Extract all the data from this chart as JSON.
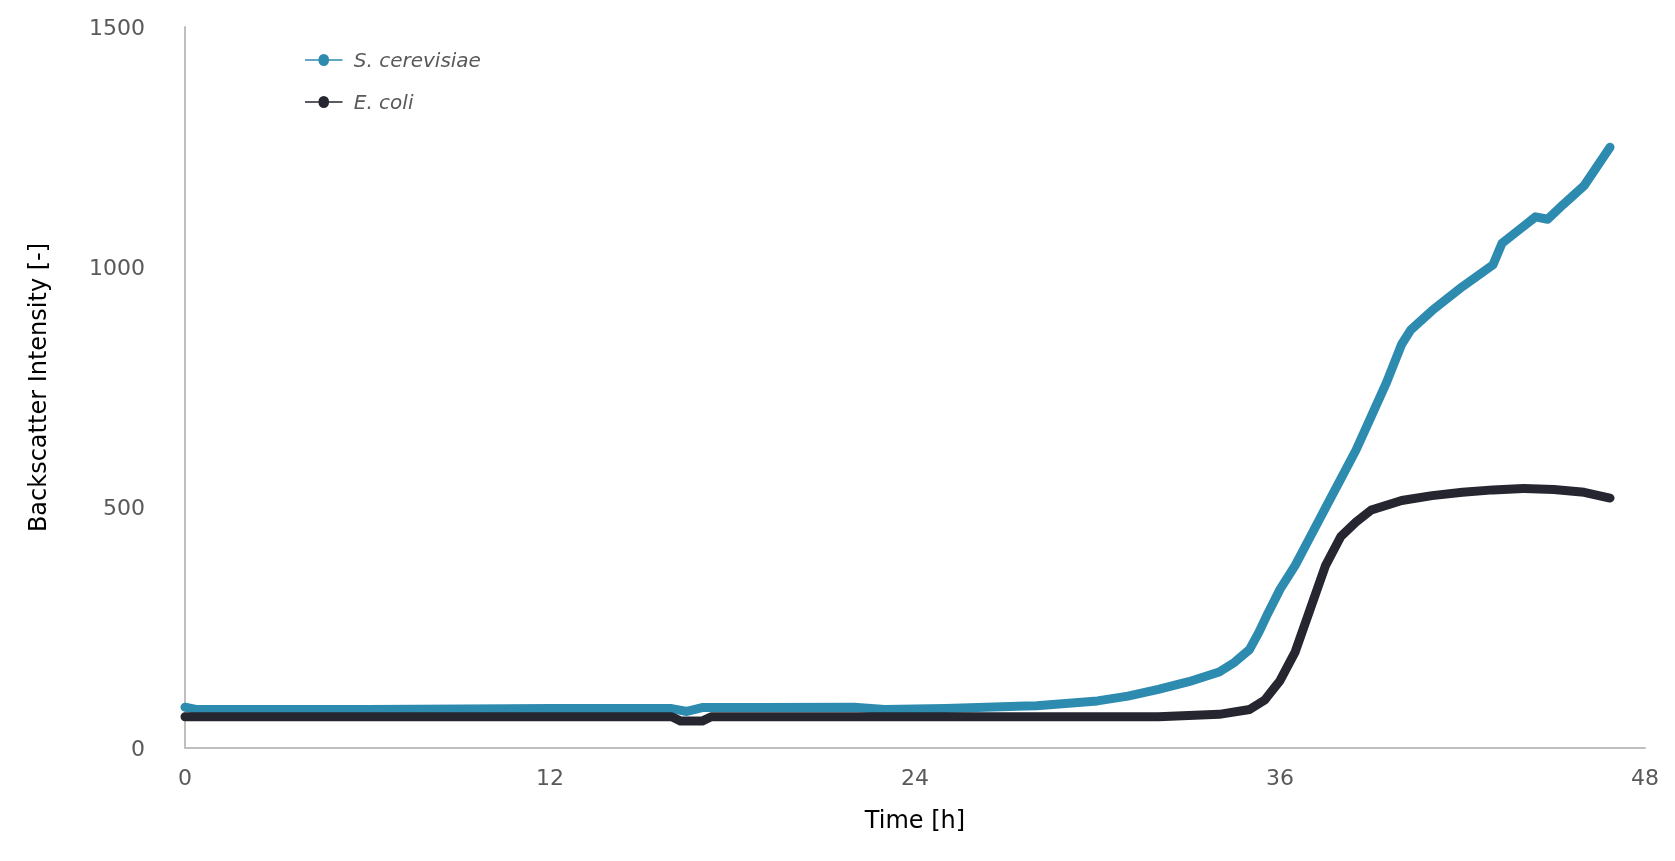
{
  "chart_data": {
    "type": "line",
    "xlabel": "Time [h]",
    "ylabel": "Backscatter Intensity [-]",
    "xlim": [
      0,
      48
    ],
    "xticks": [
      0,
      12,
      24,
      36,
      48
    ],
    "ylim": [
      0,
      1500
    ],
    "yticks": [
      0,
      500,
      1000,
      1500
    ],
    "grid": false,
    "legend": "top left",
    "marker": "none",
    "line_style": "solid",
    "series": [
      {
        "name": "S. cerevisiae",
        "color": "#2e8bb0",
        "x": [
          0,
          0.4,
          6,
          12,
          16,
          16.5,
          17,
          22,
          23,
          25,
          28,
          30,
          31,
          32,
          33,
          34,
          34.5,
          35,
          35.3,
          35.6,
          36,
          36.5,
          37,
          37.5,
          38,
          38.5,
          39,
          39.5,
          40,
          40.3,
          41,
          42,
          43,
          43.3,
          44,
          44.4,
          44.8,
          45.3,
          46,
          46.85
        ],
        "values": [
          85,
          80,
          80,
          82,
          82,
          76,
          84,
          85,
          80,
          82,
          88,
          98,
          108,
          122,
          138,
          158,
          178,
          205,
          240,
          280,
          330,
          380,
          440,
          500,
          560,
          620,
          690,
          760,
          840,
          870,
          910,
          960,
          1005,
          1050,
          1085,
          1105,
          1100,
          1130,
          1170,
          1250
        ]
      },
      {
        "name": "E. coli",
        "color": "#262631",
        "x": [
          0,
          12,
          16,
          16.3,
          17,
          17.3,
          24,
          32,
          34,
          35,
          35.5,
          36,
          36.5,
          37,
          37.5,
          38,
          38.5,
          39,
          40,
          41,
          42,
          43,
          44,
          45,
          46,
          46.85
        ],
        "values": [
          65,
          65,
          65,
          56,
          56,
          65,
          65,
          65,
          70,
          80,
          100,
          140,
          200,
          290,
          380,
          440,
          470,
          495,
          515,
          525,
          532,
          537,
          540,
          538,
          532,
          520
        ]
      }
    ]
  }
}
